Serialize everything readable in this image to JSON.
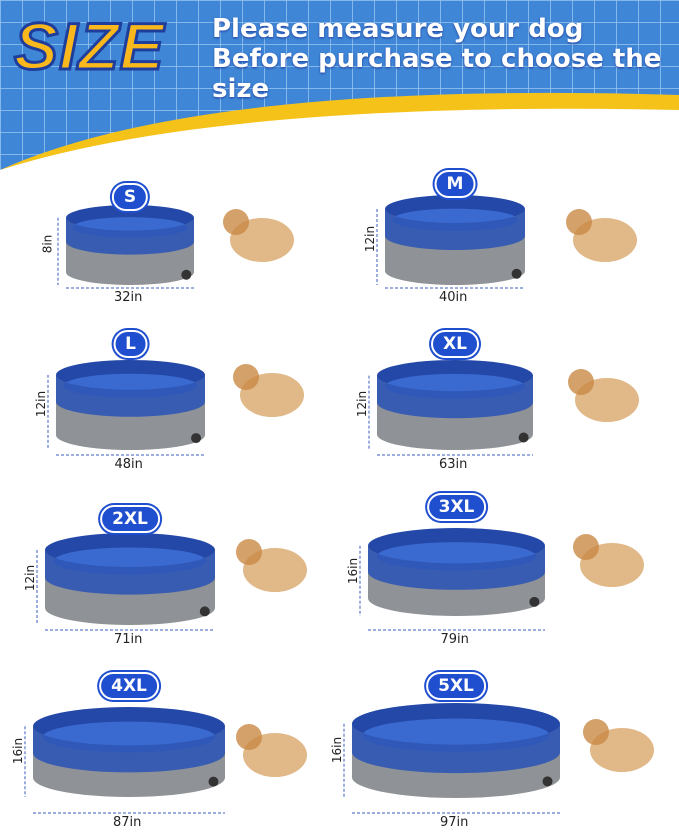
{
  "header": {
    "title": "SIZE",
    "subtitle": "Please measure your dog Before purchase to choose the size"
  },
  "colors": {
    "pool_blue": "#2f57b5",
    "pool_gray": "#8f9296",
    "badge": "#1f4fcf",
    "title_yellow": "#fbb81c"
  },
  "sizes": [
    {
      "label": "S",
      "height": "8in",
      "diameter": "32in"
    },
    {
      "label": "M",
      "height": "12in",
      "diameter": "40in"
    },
    {
      "label": "L",
      "height": "12in",
      "diameter": "48in"
    },
    {
      "label": "XL",
      "height": "12in",
      "diameter": "63in"
    },
    {
      "label": "2XL",
      "height": "12in",
      "diameter": "71in"
    },
    {
      "label": "3XL",
      "height": "16in",
      "diameter": "79in"
    },
    {
      "label": "4XL",
      "height": "16in",
      "diameter": "87in"
    },
    {
      "label": "5XL",
      "height": "16in",
      "diameter": "97in"
    }
  ]
}
